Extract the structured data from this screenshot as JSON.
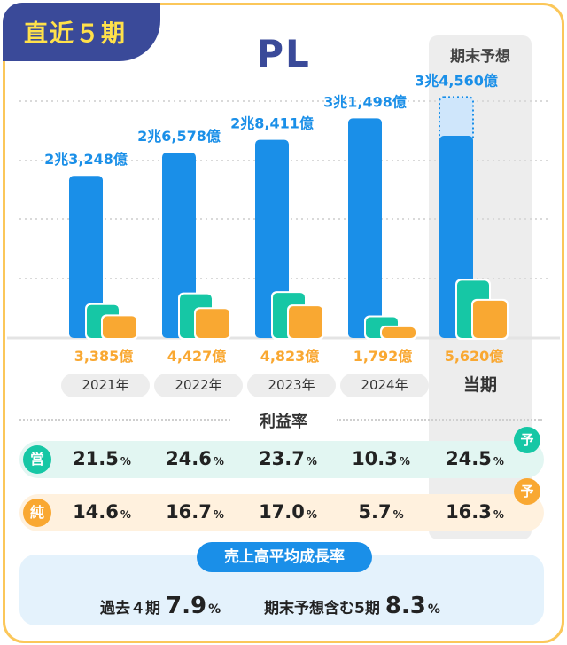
{
  "badge": "直近５期",
  "title": "PL",
  "forecast_header": "期末予想",
  "colors": {
    "revenue": "#1a8fe8",
    "revenue_forecast": "#cfe6fb",
    "operating": "#16c7a5",
    "net": "#f9a832",
    "navy": "#3a4a99",
    "gold": "#fbc75a"
  },
  "chart_data": {
    "type": "bar",
    "title": "PL",
    "categories": [
      "2021年",
      "2022年",
      "2023年",
      "2024年",
      "当期"
    ],
    "ylim": [
      0,
      36000
    ],
    "series": [
      {
        "name": "売上高",
        "unit": "億",
        "values": [
          23248,
          26578,
          28411,
          31498,
          34560
        ],
        "labels": [
          "2兆3,248億",
          "2兆6,578億",
          "2兆8,411億",
          "3兆1,498億",
          "3兆4,560億"
        ]
      },
      {
        "name": "営業利益",
        "unit": "億",
        "values": [
          4998,
          6538,
          6733,
          3244,
          8472
        ]
      },
      {
        "name": "純利益",
        "unit": "億",
        "values": [
          3385,
          4427,
          4823,
          1792,
          5620
        ],
        "labels": [
          "3,385億",
          "4,427億",
          "4,823億",
          "1,792億",
          "5,620億"
        ]
      }
    ],
    "forecast_index": 4,
    "forecast_base_revenue": 29000
  },
  "profit_rate": {
    "label": "利益率",
    "operating": {
      "badge": "営",
      "values": [
        "21.5",
        "24.6",
        "23.7",
        "10.3",
        "24.5"
      ]
    },
    "net": {
      "badge": "純",
      "values": [
        "14.6",
        "16.7",
        "17.0",
        "5.7",
        "16.3"
      ]
    },
    "unit": "%",
    "forecast_badge": "予"
  },
  "growth": {
    "title": "売上高平均成長率",
    "past_label": "過去４期",
    "past_value": "7.9",
    "incl_label": "期末予想含む5期",
    "incl_value": "8.3",
    "unit": "%"
  }
}
